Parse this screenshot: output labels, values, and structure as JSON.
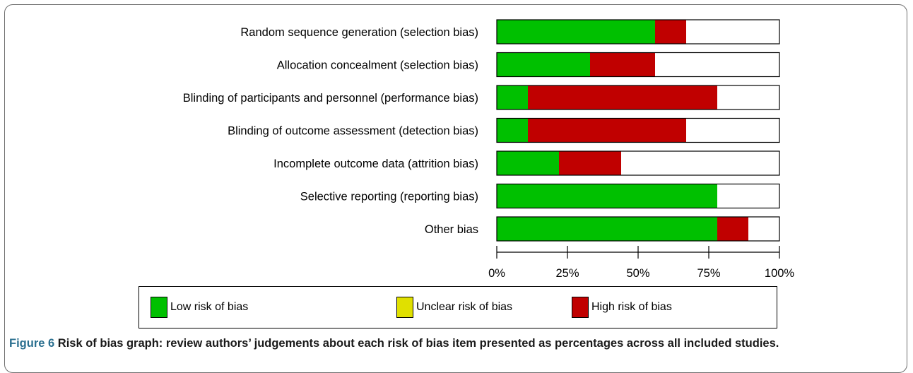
{
  "chart_data": {
    "type": "bar",
    "stacked": true,
    "orientation": "horizontal",
    "categories": [
      "Random sequence generation (selection bias)",
      "Allocation concealment (selection bias)",
      "Blinding of participants and personnel (performance bias)",
      "Blinding of outcome assessment (detection bias)",
      "Incomplete outcome data (attrition bias)",
      "Selective reporting (reporting bias)",
      "Other bias"
    ],
    "series": [
      {
        "name": "Low risk of bias",
        "color": "#00c000",
        "values": [
          56,
          33,
          11,
          11,
          22,
          78,
          78
        ]
      },
      {
        "name": "Unclear risk of bias",
        "color": "#e0e000",
        "values": [
          0,
          0,
          0,
          0,
          0,
          0,
          0
        ]
      },
      {
        "name": "High risk of bias",
        "color": "#c00000",
        "values": [
          11,
          23,
          67,
          56,
          22,
          0,
          11
        ]
      }
    ],
    "remainder_color": "#ffffff",
    "xlim": [
      0,
      100
    ],
    "xticks": [
      0,
      25,
      50,
      75,
      100
    ],
    "xtick_labels": [
      "0%",
      "25%",
      "50%",
      "75%",
      "100%"
    ],
    "legend_position": "bottom",
    "grid": false
  },
  "caption": {
    "number": "Figure 6",
    "text": "Risk of bias graph: review authors’ judgements about each risk of bias item presented as percentages across all included studies."
  }
}
